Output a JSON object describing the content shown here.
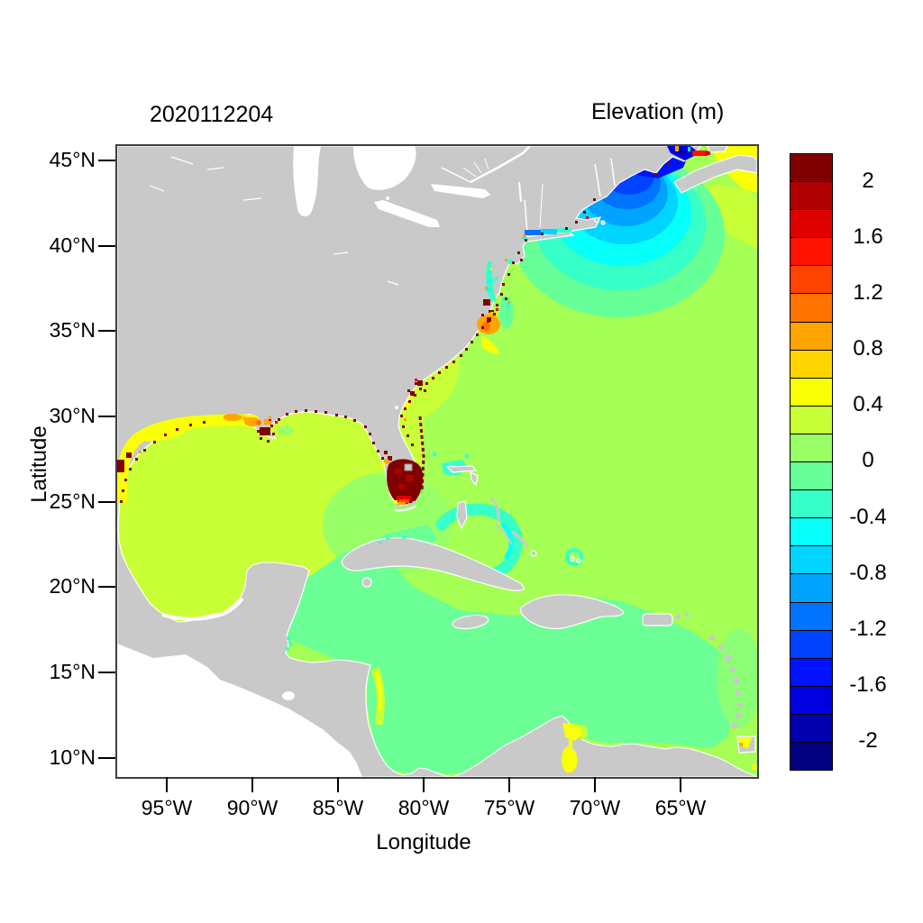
{
  "title": "2020112204",
  "colorbar": {
    "title": "Elevation (m)",
    "tick_labels_top_to_bottom": [
      "2",
      "1.6",
      "1.2",
      "0.8",
      "0.4",
      "0",
      "-0.4",
      "-0.8",
      "-1.2",
      "-1.6",
      "-2"
    ],
    "min": -2.2,
    "max": 2.2,
    "step": 0.2,
    "colors_bottom_to_top": [
      "#000080",
      "#0000B0",
      "#0000E1",
      "#0012FF",
      "#0043FF",
      "#0073FF",
      "#00A4FF",
      "#00D5FF",
      "#06FFF9",
      "#37FFC8",
      "#67FF98",
      "#98FF67",
      "#C8FF37",
      "#F9FF06",
      "#FFD500",
      "#FFA400",
      "#FF7300",
      "#FF4300",
      "#FF1200",
      "#E10000",
      "#B00000",
      "#800000"
    ]
  },
  "axes": {
    "x_label": "Longitude",
    "y_label": "Latitude",
    "x_tick_labels": [
      "95°W",
      "90°W",
      "85°W",
      "80°W",
      "75°W",
      "70°W",
      "65°W"
    ],
    "y_tick_labels": [
      "45°N",
      "40°N",
      "35°N",
      "30°N",
      "25°N",
      "20°N",
      "15°N",
      "10°N"
    ]
  },
  "colors": {
    "land": "#c9c9c9",
    "no_data_background": "#ffffff",
    "frame": "#404040",
    "atlantic_fill": "#a5ff55",
    "gulf_of_mexico_fill": "#c8ff37",
    "caribbean_fill": "#6bff95"
  },
  "chart_data": {
    "type": "heatmap",
    "title": "2020112204",
    "variable": "Elevation",
    "units": "m",
    "colormap": "jet",
    "levels": {
      "min": -2.2,
      "max": 2.2,
      "step": 0.2
    },
    "xlabel": "Longitude",
    "ylabel": "Latitude",
    "x_ticks_deg_west": [
      95,
      90,
      85,
      80,
      75,
      70,
      65
    ],
    "y_ticks_deg_north": [
      45,
      40,
      35,
      30,
      25,
      20,
      15,
      10
    ],
    "extent": {
      "lon_west_max": 98,
      "lon_west_min": 60.5,
      "lat_north_min": 9,
      "lat_north_max": 46
    },
    "colorbar_tick_values": [
      2,
      1.6,
      1.2,
      0.8,
      0.4,
      0,
      -0.4,
      -0.8,
      -1.2,
      -1.6,
      -2
    ],
    "regions_estimated_elevation_m": [
      {
        "region": "open_atlantic",
        "value": 0.2
      },
      {
        "region": "gulf_of_mexico_central",
        "value": 0.3
      },
      {
        "region": "texas_louisiana_shelf",
        "value": 0.5
      },
      {
        "region": "louisiana_marshes",
        "value": 0.9
      },
      {
        "region": "coastal_marsh_speckles_gulf_and_east_coast",
        "value": 2.2
      },
      {
        "region": "south_atlantic_bight_georgia",
        "value": 0.35
      },
      {
        "region": "pamlico_sound",
        "value": 0.9
      },
      {
        "region": "chesapeake_bay",
        "value": -0.5
      },
      {
        "region": "long_island_sound",
        "value": -1.0
      },
      {
        "region": "gulf_of_maine",
        "value": -1.7
      },
      {
        "region": "bay_of_fundy",
        "value": -2.1
      },
      {
        "region": "minas_basin_red_streak",
        "value": 1.5
      },
      {
        "region": "northeast_corner_scotian_shelf",
        "value": 0.5
      },
      {
        "region": "south_florida_everglades_flooded",
        "value": 2.2
      },
      {
        "region": "florida_bay_fringe",
        "value": 1.0
      },
      {
        "region": "great_bahama_bank_swirl",
        "value": -0.5
      },
      {
        "region": "caribbean_sea",
        "value": -0.1
      },
      {
        "region": "nicaragua_coast_band",
        "value": 0.3
      },
      {
        "region": "gulf_of_venezuela",
        "value": 0.5
      },
      {
        "region": "lake_maracaibo",
        "value": 0.5
      },
      {
        "region": "trinidad_gulf_of_paria",
        "value": 0.6
      }
    ]
  }
}
